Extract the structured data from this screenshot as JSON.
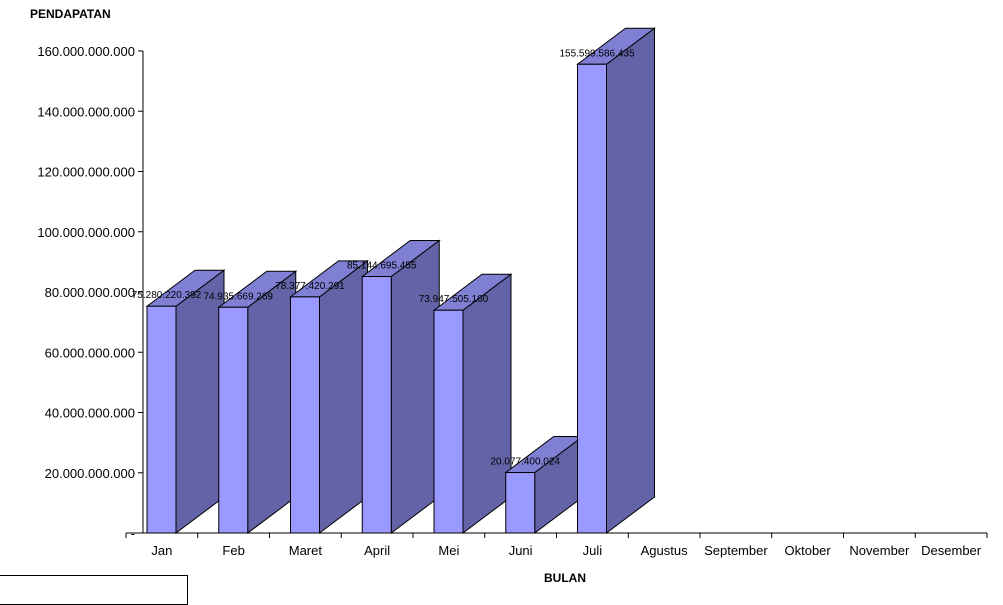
{
  "chart_data": {
    "type": "bar",
    "ylabel": "PENDAPATAN",
    "xlabel": "BULAN",
    "categories": [
      "Jan",
      "Feb",
      "Maret",
      "April",
      "Mei",
      "Juni",
      "Juli",
      "Agustus",
      "September",
      "Oktober",
      "November",
      "Desember"
    ],
    "values": [
      75280220392,
      74935669269,
      78377420291,
      85144695455,
      73947505160,
      20077400024,
      155599586435,
      null,
      null,
      null,
      null,
      null
    ],
    "data_labels": [
      "75.280.220.392",
      "74.935.669.269",
      "78.377.420.291",
      "85.144.695.455",
      "73.947.505.160",
      "20.077.400.024",
      "155.599.586.435",
      "",
      "",
      "",
      "",
      ""
    ],
    "yticks": [
      0,
      20000000000,
      40000000000,
      60000000000,
      80000000000,
      100000000000,
      120000000000,
      140000000000,
      160000000000
    ],
    "ytick_labels": [
      "-",
      "20.000.000.000",
      "40.000.000.000",
      "60.000.000.000",
      "80.000.000.000",
      "100.000.000.000",
      "120.000.000.000",
      "140.000.000.000",
      "160.000.000.000"
    ],
    "ylim": [
      0,
      160000000000
    ],
    "three_d": true,
    "grid": false,
    "colors": {
      "bar_front": "#9999FF",
      "bar_side": "#6363A8",
      "bar_top": "#7F7FD4",
      "outline": "#000000"
    }
  }
}
